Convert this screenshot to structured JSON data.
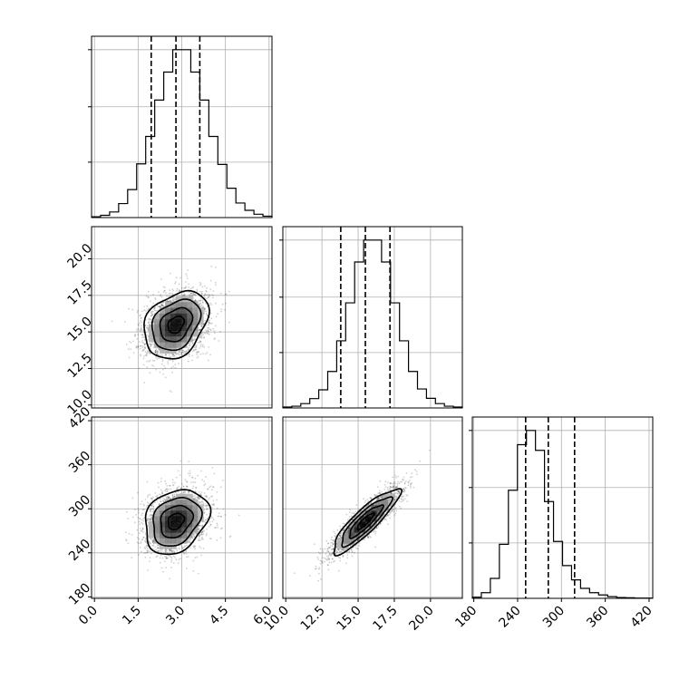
{
  "chart_data": {
    "type": "corner",
    "parameters": [
      {
        "range": [
          -0.1,
          6.1
        ],
        "ticks": [
          "0.0",
          "1.5",
          "3.0",
          "4.5",
          "6.0"
        ],
        "tick_values": [
          0,
          1.5,
          3,
          4.5,
          6
        ],
        "mean": 2.8,
        "sd": 0.55,
        "quantiles": [
          1.95,
          2.8,
          3.62
        ]
      },
      {
        "range": [
          9.8,
          22.2
        ],
        "ticks": [
          "10.0",
          "12.5",
          "15.0",
          "17.5",
          "20.0"
        ],
        "tick_values": [
          10,
          12.5,
          15,
          17.5,
          20
        ],
        "mean": 15.5,
        "sd": 1.15,
        "quantiles": [
          13.8,
          15.5,
          17.2
        ]
      },
      {
        "range": [
          178,
          425
        ],
        "ticks": [
          "180",
          "240",
          "300",
          "360",
          "420"
        ],
        "tick_values": [
          180,
          240,
          300,
          360,
          420
        ],
        "mean": 283,
        "sd": 22,
        "quantiles": [
          251,
          282,
          318
        ]
      }
    ],
    "histograms": [
      {
        "param": 0,
        "bins": 20,
        "counts": [
          3,
          8,
          20,
          50,
          100,
          192,
          290,
          420,
          520,
          600,
          600,
          520,
          420,
          290,
          190,
          105,
          52,
          26,
          12,
          5
        ]
      },
      {
        "param": 1,
        "bins": 20,
        "counts": [
          3,
          6,
          15,
          32,
          62,
          125,
          230,
          360,
          500,
          575,
          575,
          500,
          360,
          230,
          125,
          65,
          33,
          15,
          6,
          3
        ]
      },
      {
        "param": 2,
        "bins": 20,
        "counts": [
          4,
          20,
          70,
          190,
          380,
          540,
          590,
          520,
          340,
          200,
          115,
          65,
          35,
          20,
          12,
          6,
          3,
          2,
          1,
          1
        ]
      }
    ],
    "panels_2d": [
      {
        "x": 0,
        "y": 1,
        "correlation": 0.3
      },
      {
        "x": 0,
        "y": 2,
        "correlation": 0.25
      },
      {
        "x": 1,
        "y": 2,
        "correlation": 0.88
      }
    ],
    "contour_levels_sigma": [
      0.5,
      1.0,
      1.5,
      2.0
    ],
    "quantile_lines": "dashed",
    "grid": true
  }
}
